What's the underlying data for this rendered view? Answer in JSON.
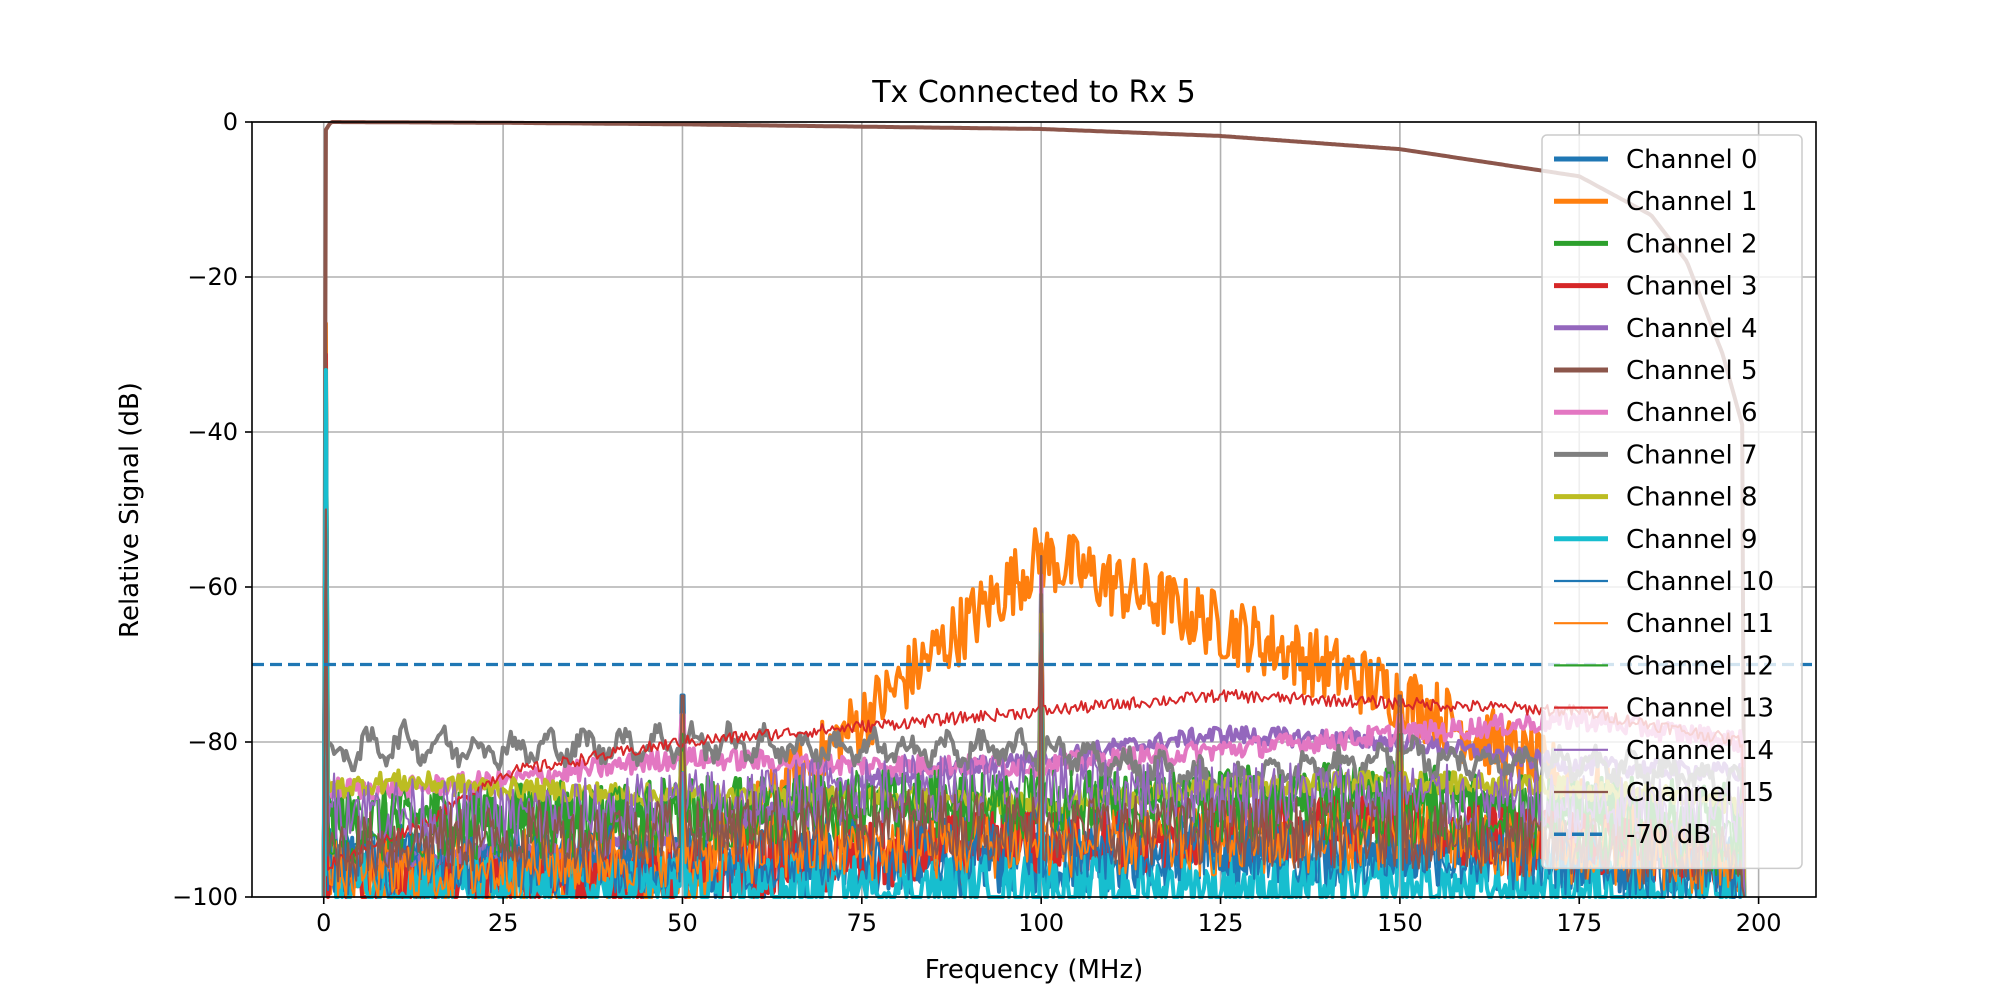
{
  "chart_data": {
    "type": "line",
    "title": "Tx Connected to Rx 5",
    "xlabel": "Frequency (MHz)",
    "ylabel": "Relative Signal (dB)",
    "xlim": [
      -10,
      208
    ],
    "ylim": [
      -100,
      0
    ],
    "xticks": [
      0,
      25,
      50,
      75,
      100,
      125,
      150,
      175,
      200
    ],
    "yticks": [
      0,
      -20,
      -40,
      -60,
      -80,
      -100
    ],
    "xtick_labels": [
      "0",
      "25",
      "50",
      "75",
      "100",
      "125",
      "150",
      "175",
      "200"
    ],
    "ytick_labels": [
      "0",
      "−20",
      "−40",
      "−60",
      "−80",
      "−100"
    ],
    "grid": true,
    "legend_position": "top-right",
    "hline": {
      "name": "-70 dB",
      "y": -70,
      "color": "#1f77b4",
      "style": "dashed"
    },
    "spikes": [
      {
        "x": 50,
        "peak": -74
      },
      {
        "x": 100,
        "peak": -56
      },
      {
        "x": 150,
        "peak": -74
      }
    ],
    "series": [
      {
        "name": "Channel 0",
        "color": "#1f77b4",
        "width": "thick",
        "points": [
          [
            0,
            -100
          ],
          [
            0.3,
            -30
          ],
          [
            0.5,
            -95
          ],
          [
            10,
            -95
          ],
          [
            50,
            -96
          ],
          [
            100,
            -95
          ],
          [
            150,
            -94
          ],
          [
            198,
            -96
          ]
        ]
      },
      {
        "name": "Channel 1",
        "color": "#ff7f0e",
        "width": "thick",
        "points": [
          [
            0,
            -100
          ],
          [
            0.3,
            -26
          ],
          [
            0.5,
            -96
          ],
          [
            10,
            -97
          ],
          [
            50,
            -98
          ],
          [
            100,
            -56
          ],
          [
            150,
            -74
          ],
          [
            198,
            -97
          ]
        ]
      },
      {
        "name": "Channel 2",
        "color": "#2ca02c",
        "width": "thick",
        "points": [
          [
            0,
            -100
          ],
          [
            0.3,
            -33
          ],
          [
            0.5,
            -90
          ],
          [
            10,
            -90
          ],
          [
            50,
            -89
          ],
          [
            100,
            -88
          ],
          [
            150,
            -87
          ],
          [
            198,
            -90
          ]
        ]
      },
      {
        "name": "Channel 3",
        "color": "#d62728",
        "width": "thick",
        "points": [
          [
            0,
            -100
          ],
          [
            0.3,
            -30
          ],
          [
            0.5,
            -98
          ],
          [
            10,
            -98
          ],
          [
            50,
            -97
          ],
          [
            100,
            -93
          ],
          [
            150,
            -91
          ],
          [
            198,
            -96
          ]
        ]
      },
      {
        "name": "Channel 4",
        "color": "#9467bd",
        "width": "thick",
        "points": [
          [
            0,
            -100
          ],
          [
            0.3,
            -35
          ],
          [
            0.5,
            -95
          ],
          [
            10,
            -95
          ],
          [
            50,
            -93
          ],
          [
            75,
            -85
          ],
          [
            100,
            -82
          ],
          [
            125,
            -79
          ],
          [
            150,
            -80
          ],
          [
            175,
            -83
          ],
          [
            198,
            -84
          ]
        ]
      },
      {
        "name": "Channel 5",
        "color": "#8c564b",
        "width": "thick",
        "points": [
          [
            0,
            -100
          ],
          [
            0.3,
            -1
          ],
          [
            1,
            0
          ],
          [
            25,
            -0.1
          ],
          [
            50,
            -0.3
          ],
          [
            75,
            -0.6
          ],
          [
            100,
            -0.9
          ],
          [
            125,
            -1.8
          ],
          [
            150,
            -3.5
          ],
          [
            175,
            -7
          ],
          [
            185,
            -12
          ],
          [
            190,
            -18
          ],
          [
            195,
            -30
          ],
          [
            198,
            -40
          ]
        ]
      },
      {
        "name": "Channel 6",
        "color": "#e377c2",
        "width": "thick",
        "points": [
          [
            0,
            -100
          ],
          [
            0.3,
            -40
          ],
          [
            0.5,
            -86
          ],
          [
            10,
            -86
          ],
          [
            25,
            -85
          ],
          [
            50,
            -82
          ],
          [
            75,
            -83
          ],
          [
            100,
            -83
          ],
          [
            125,
            -81
          ],
          [
            150,
            -79
          ],
          [
            175,
            -77
          ],
          [
            198,
            -80
          ]
        ]
      },
      {
        "name": "Channel 7",
        "color": "#7f7f7f",
        "width": "thick",
        "points": [
          [
            0,
            -100
          ],
          [
            0.3,
            -35
          ],
          [
            0.5,
            -82
          ],
          [
            10,
            -80
          ],
          [
            25,
            -81
          ],
          [
            50,
            -80
          ],
          [
            75,
            -81
          ],
          [
            100,
            -81
          ],
          [
            125,
            -85
          ],
          [
            150,
            -82
          ],
          [
            175,
            -83
          ],
          [
            198,
            -85
          ]
        ]
      },
      {
        "name": "Channel 8",
        "color": "#bcbd22",
        "width": "thick",
        "points": [
          [
            0,
            -100
          ],
          [
            0.3,
            -45
          ],
          [
            0.5,
            -86
          ],
          [
            10,
            -85
          ],
          [
            25,
            -86
          ],
          [
            50,
            -87
          ],
          [
            75,
            -87
          ],
          [
            100,
            -88
          ],
          [
            125,
            -86
          ],
          [
            150,
            -85
          ],
          [
            175,
            -86
          ],
          [
            198,
            -88
          ]
        ]
      },
      {
        "name": "Channel 9",
        "color": "#17becf",
        "width": "thick",
        "points": [
          [
            0,
            -100
          ],
          [
            0.3,
            -32
          ],
          [
            0.5,
            -98
          ],
          [
            10,
            -99
          ],
          [
            50,
            -99
          ],
          [
            100,
            -99
          ],
          [
            150,
            -99
          ],
          [
            198,
            -99
          ]
        ]
      },
      {
        "name": "Channel 10",
        "color": "#1f77b4",
        "width": "thin",
        "points": [
          [
            0,
            -100
          ],
          [
            0.3,
            -50
          ],
          [
            0.5,
            -95
          ],
          [
            10,
            -96
          ],
          [
            50,
            -95
          ],
          [
            75,
            -94
          ],
          [
            100,
            -93
          ],
          [
            150,
            -94
          ],
          [
            198,
            -97
          ]
        ]
      },
      {
        "name": "Channel 11",
        "color": "#ff7f0e",
        "width": "thin",
        "points": [
          [
            0,
            -100
          ],
          [
            0.3,
            -50
          ],
          [
            0.5,
            -97
          ],
          [
            10,
            -97
          ],
          [
            50,
            -94
          ],
          [
            100,
            -93
          ],
          [
            125,
            -93
          ],
          [
            150,
            -92
          ],
          [
            198,
            -96
          ]
        ]
      },
      {
        "name": "Channel 12",
        "color": "#2ca02c",
        "width": "thin",
        "points": [
          [
            0,
            -100
          ],
          [
            0.3,
            -50
          ],
          [
            0.5,
            -92
          ],
          [
            10,
            -91
          ],
          [
            50,
            -90
          ],
          [
            75,
            -88
          ],
          [
            100,
            -88
          ],
          [
            150,
            -89
          ],
          [
            198,
            -93
          ]
        ]
      },
      {
        "name": "Channel 13",
        "color": "#d62728",
        "width": "thin",
        "points": [
          [
            0,
            -100
          ],
          [
            0.3,
            -50
          ],
          [
            0.5,
            -96
          ],
          [
            5,
            -94
          ],
          [
            15,
            -90
          ],
          [
            25,
            -84
          ],
          [
            50,
            -80
          ],
          [
            75,
            -78
          ],
          [
            100,
            -76
          ],
          [
            125,
            -74
          ],
          [
            150,
            -75
          ],
          [
            175,
            -76
          ],
          [
            198,
            -80
          ]
        ]
      },
      {
        "name": "Channel 14",
        "color": "#9467bd",
        "width": "thin",
        "points": [
          [
            0,
            -100
          ],
          [
            0.3,
            -50
          ],
          [
            0.5,
            -88
          ],
          [
            10,
            -89
          ],
          [
            25,
            -90
          ],
          [
            50,
            -88
          ],
          [
            75,
            -86
          ],
          [
            100,
            -86
          ],
          [
            150,
            -87
          ],
          [
            198,
            -90
          ]
        ]
      },
      {
        "name": "Channel 15",
        "color": "#8c564b",
        "width": "thin",
        "points": [
          [
            0,
            -100
          ],
          [
            0.3,
            -50
          ],
          [
            0.5,
            -94
          ],
          [
            10,
            -93
          ],
          [
            50,
            -91
          ],
          [
            75,
            -90
          ],
          [
            100,
            -91
          ],
          [
            150,
            -92
          ],
          [
            198,
            -95
          ]
        ]
      }
    ]
  }
}
